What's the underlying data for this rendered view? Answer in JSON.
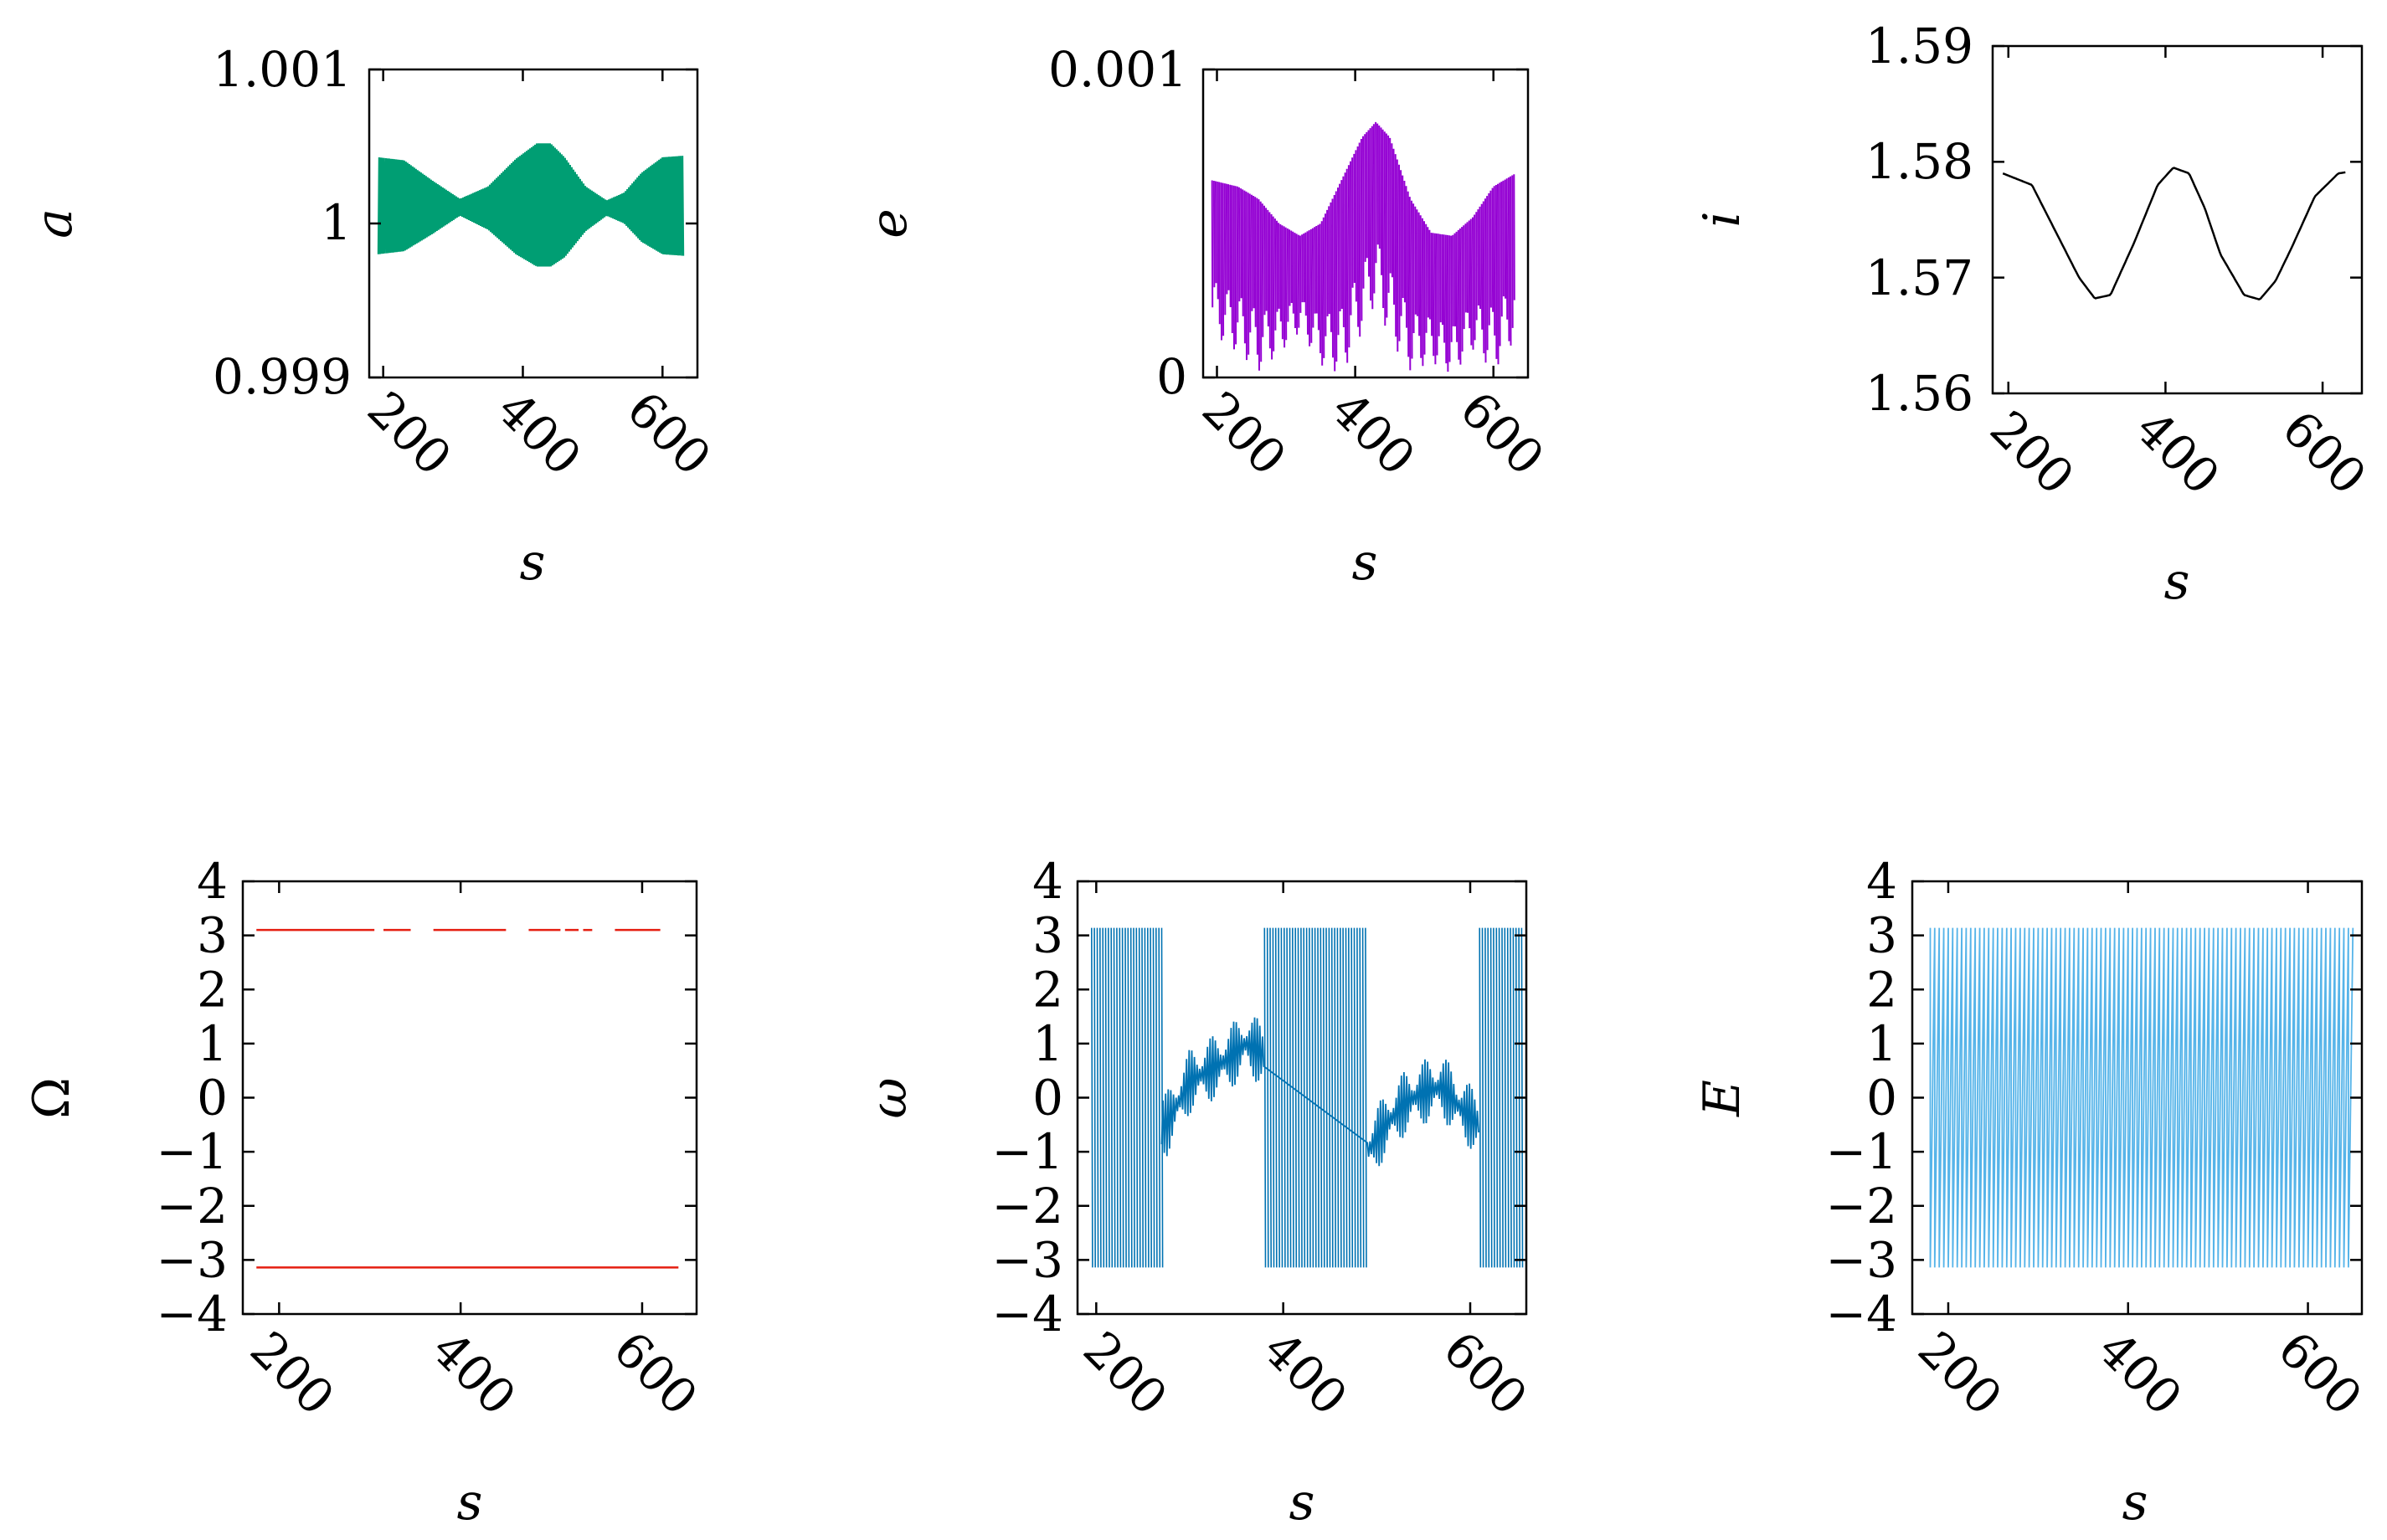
{
  "figure": {
    "xlabel": "s",
    "colors": {
      "a": "#009e73",
      "e": "#9400d3",
      "i": "#000000",
      "Omega": "#e51e10",
      "omega": "#0072b2",
      "E": "#56b4e9"
    }
  },
  "chart_data": [
    {
      "id": "a",
      "type": "line",
      "title": "",
      "xlabel": "s",
      "ylabel": "a",
      "xlim": [
        180,
        650
      ],
      "ylim": [
        0.999,
        1.001
      ],
      "xticks": [
        "200",
        "400",
        "600"
      ],
      "yticks": [
        "0.999",
        "1",
        "1.001"
      ],
      "color": "#009e73",
      "series": [
        {
          "name": "a",
          "x": [
            193,
            230,
            270,
            310,
            350,
            390,
            420,
            440,
            460,
            490,
            520,
            545,
            570,
            600,
            630
          ],
          "upper": [
            1.00043,
            1.00041,
            1.00028,
            1.00016,
            1.00024,
            1.00042,
            1.00052,
            1.00052,
            1.00043,
            1.00024,
            1.00015,
            1.0002,
            1.00033,
            1.00043,
            1.00044
          ],
          "lower": [
            0.9998,
            0.99982,
            0.99993,
            1.00005,
            0.99996,
            0.9998,
            0.99972,
            0.99972,
            0.99978,
            0.99995,
            1.00005,
            1.0,
            0.99988,
            0.9998,
            0.99979
          ]
        }
      ]
    },
    {
      "id": "e",
      "type": "line",
      "title": "",
      "xlabel": "s",
      "ylabel": "e",
      "xlim": [
        180,
        650
      ],
      "ylim": [
        0,
        0.001
      ],
      "xticks": [
        "200",
        "400",
        "600"
      ],
      "yticks": [
        "0",
        "0.001"
      ],
      "color": "#009e73",
      "series": [
        {
          "name": "e",
          "x": [
            193,
            230,
            260,
            290,
            320,
            350,
            380,
            410,
            430,
            450,
            480,
            510,
            540,
            570,
            600,
            630
          ],
          "upper": [
            0.00064,
            0.00062,
            0.00058,
            0.0005,
            0.00046,
            0.0005,
            0.00064,
            0.00078,
            0.00083,
            0.00078,
            0.00058,
            0.00047,
            0.00046,
            0.00052,
            0.00062,
            0.00066
          ],
          "lower": [
            0.00014,
            8e-05,
            2e-05,
            8e-05,
            0.00015,
            4e-05,
            1e-05,
            0.00015,
            0.00025,
            0.00012,
            2e-05,
            5e-05,
            1e-05,
            9e-05,
            2e-05,
            0.00012
          ]
        }
      ]
    },
    {
      "id": "i",
      "type": "line",
      "title": "",
      "xlabel": "s",
      "ylabel": "i",
      "xlim": [
        180,
        650
      ],
      "ylim": [
        1.56,
        1.59
      ],
      "xticks": [
        "200",
        "400",
        "600"
      ],
      "yticks": [
        "1.56",
        "1.57",
        "1.58",
        "1.59"
      ],
      "color": "#000000",
      "series": [
        {
          "name": "i",
          "x": [
            193,
            230,
            260,
            290,
            310,
            330,
            360,
            390,
            410,
            430,
            450,
            470,
            500,
            520,
            540,
            560,
            590,
            620,
            630
          ],
          "y": [
            1.579,
            1.578,
            1.574,
            1.57,
            1.5682,
            1.5685,
            1.573,
            1.578,
            1.5795,
            1.579,
            1.576,
            1.572,
            1.5685,
            1.5681,
            1.5697,
            1.5725,
            1.577,
            1.579,
            1.5791
          ]
        }
      ]
    },
    {
      "id": "Omega",
      "type": "scatter",
      "title": "",
      "xlabel": "s",
      "ylabel": "Ω",
      "xlim": [
        160,
        660
      ],
      "ylim": [
        -4,
        4
      ],
      "xticks": [
        "200",
        "400",
        "600"
      ],
      "yticks": [
        "4",
        "3",
        "2",
        "1",
        "0",
        "−1",
        "−2",
        "−3",
        "−4"
      ],
      "color": "#e51e10",
      "series": [
        {
          "name": "Ω",
          "segments": [
            {
              "y": 3.1,
              "x": [
                [
                  175,
                  305
                ],
                [
                  315,
                  345
                ],
                [
                  370,
                  450
                ],
                [
                  475,
                  510
                ],
                [
                  515,
                  530
                ],
                [
                  535,
                  545
                ],
                [
                  570,
                  620
                ]
              ]
            },
            {
              "y": -3.14,
              "x": [
                [
                  175,
                  640
                ]
              ]
            }
          ]
        }
      ]
    },
    {
      "id": "omega",
      "type": "line",
      "title": "",
      "xlabel": "s",
      "ylabel": "ω",
      "xlim": [
        180,
        660
      ],
      "ylim": [
        -4,
        4
      ],
      "xticks": [
        "200",
        "400",
        "600"
      ],
      "yticks": [
        "4",
        "3",
        "2",
        "1",
        "0",
        "−1",
        "−2",
        "−3",
        "−4"
      ],
      "color": "#0072b2",
      "series": [
        {
          "name": "ω",
          "full_range_x": [
            [
              195,
              270
            ],
            [
              380,
              490
            ],
            [
              610,
              655
            ]
          ],
          "band_x": [
            [
              270,
              380
            ],
            [
              490,
              610
            ]
          ],
          "band_center_x": [
            275,
            300,
            320,
            340,
            360,
            380,
            490,
            510,
            530,
            550,
            570,
            590,
            610
          ],
          "band_center_y": [
            -0.5,
            0.3,
            0.5,
            0.7,
            1.0,
            0.8,
            -1.0,
            -0.5,
            -0.1,
            0.1,
            0.2,
            -0.2,
            -0.5
          ],
          "band_halfwidth": 0.6
        }
      ]
    },
    {
      "id": "E",
      "type": "line",
      "title": "",
      "xlabel": "s",
      "ylabel": "E",
      "xlim": [
        160,
        660
      ],
      "ylim": [
        -4,
        4
      ],
      "xticks": [
        "200",
        "400",
        "600"
      ],
      "yticks": [
        "4",
        "3",
        "2",
        "1",
        "0",
        "−1",
        "−2",
        "−3",
        "−4"
      ],
      "color": "#56b4e9",
      "series": [
        {
          "name": "E",
          "x_range": [
            180,
            650
          ],
          "y_range": [
            -3.14,
            3.14
          ],
          "wrap_period": 5.0
        }
      ]
    }
  ]
}
